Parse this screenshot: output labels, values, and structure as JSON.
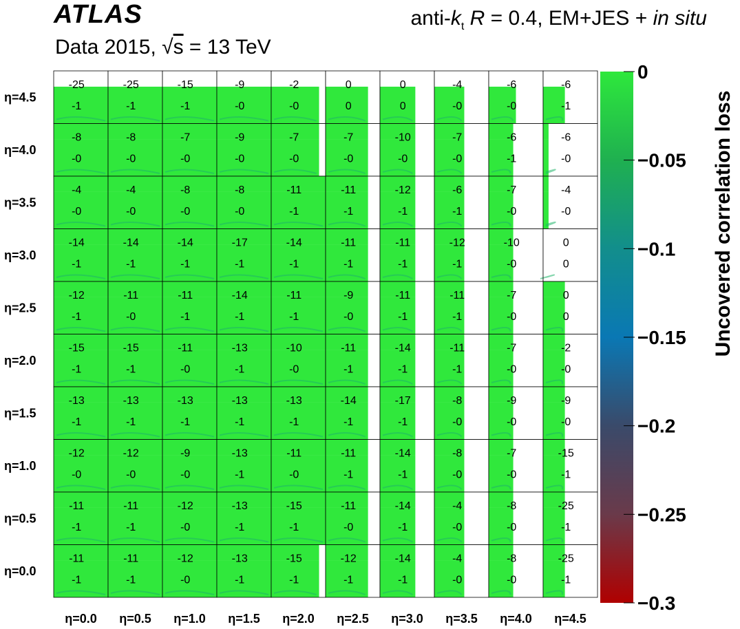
{
  "header": {
    "experiment": "ATLAS",
    "jet_prefix": "anti-",
    "jet_k": "k",
    "jet_k_sub": "t",
    "jet_R": "R",
    "jet_suffix": " = 0.4, EM+JES + ",
    "jet_insitu": "in situ",
    "data_prefix": "Data 2015, ",
    "sqrt_symbol": "√",
    "sqrt_arg": "s",
    "energy": " = 13 TeV"
  },
  "chart_data": {
    "type": "heatmap",
    "x_labels": [
      "η=0.0",
      "η=0.5",
      "η=1.0",
      "η=1.5",
      "η=2.0",
      "η=2.5",
      "η=3.0",
      "η=3.5",
      "η=4.0",
      "η=4.5"
    ],
    "y_labels": [
      "η=0.0",
      "η=0.5",
      "η=1.0",
      "η=1.5",
      "η=2.0",
      "η=2.5",
      "η=3.0",
      "η=3.5",
      "η=4.0",
      "η=4.5"
    ],
    "top_values": [
      [
        "-25",
        "-25",
        "-15",
        "-9",
        "-2",
        "0",
        "0",
        "-4",
        "-6",
        "-6"
      ],
      [
        "-8",
        "-8",
        "-7",
        "-9",
        "-7",
        "-7",
        "-10",
        "-7",
        "-6",
        "-6"
      ],
      [
        "-4",
        "-4",
        "-8",
        "-8",
        "-11",
        "-11",
        "-12",
        "-6",
        "-7",
        "-4"
      ],
      [
        "-14",
        "-14",
        "-14",
        "-17",
        "-14",
        "-11",
        "-11",
        "-12",
        "-10",
        "0"
      ],
      [
        "-12",
        "-11",
        "-11",
        "-14",
        "-11",
        "-9",
        "-11",
        "-11",
        "-7",
        "0"
      ],
      [
        "-15",
        "-15",
        "-11",
        "-13",
        "-10",
        "-11",
        "-14",
        "-11",
        "-7",
        "-2"
      ],
      [
        "-13",
        "-13",
        "-13",
        "-13",
        "-13",
        "-14",
        "-17",
        "-8",
        "-9",
        "-9"
      ],
      [
        "-12",
        "-12",
        "-9",
        "-13",
        "-11",
        "-11",
        "-14",
        "-8",
        "-7",
        "-15"
      ],
      [
        "-11",
        "-11",
        "-12",
        "-13",
        "-15",
        "-11",
        "-14",
        "-4",
        "-8",
        "-25"
      ],
      [
        "-11",
        "-11",
        "-12",
        "-13",
        "-15",
        "-12",
        "-14",
        "-4",
        "-8",
        "-25"
      ]
    ],
    "bottom_values": [
      [
        "-1",
        "-1",
        "-1",
        "-0",
        "-0",
        "0",
        "0",
        "-0",
        "-0",
        "-1"
      ],
      [
        "-0",
        "-0",
        "-0",
        "-0",
        "-0",
        "-0",
        "-0",
        "-0",
        "-1",
        "-0"
      ],
      [
        "-0",
        "-0",
        "-0",
        "-0",
        "-1",
        "-1",
        "-1",
        "-1",
        "-0",
        "-0"
      ],
      [
        "-1",
        "-1",
        "-1",
        "-1",
        "-1",
        "-1",
        "-1",
        "-1",
        "-0",
        "0"
      ],
      [
        "-1",
        "-0",
        "-1",
        "-1",
        "-1",
        "-0",
        "-1",
        "-1",
        "-0",
        "0"
      ],
      [
        "-1",
        "-1",
        "-0",
        "-1",
        "-0",
        "-1",
        "-1",
        "-1",
        "-0",
        "-0"
      ],
      [
        "-1",
        "-1",
        "-1",
        "-1",
        "-1",
        "-1",
        "-1",
        "-0",
        "-0",
        "-0"
      ],
      [
        "-0",
        "-0",
        "-0",
        "-1",
        "-0",
        "-1",
        "-1",
        "-0",
        "-0",
        "-1"
      ],
      [
        "-1",
        "-1",
        "-0",
        "-1",
        "-1",
        "-0",
        "-1",
        "-0",
        "-0",
        "-1"
      ],
      [
        "-1",
        "-1",
        "-0",
        "-1",
        "-1",
        "-1",
        "-1",
        "-0",
        "-0",
        "-1"
      ]
    ],
    "fill_fraction_top": [
      [
        1,
        1,
        1,
        1,
        0.88,
        0.78,
        0.65,
        0.55,
        0.5,
        0.4
      ],
      [
        1,
        1,
        1,
        1,
        0.88,
        0.78,
        0.65,
        0.55,
        0.45,
        0.1
      ],
      [
        1,
        1,
        1,
        1,
        1,
        0.78,
        0.65,
        0.55,
        0.45,
        0.1
      ],
      [
        1,
        1,
        1,
        1,
        1,
        0.78,
        0.65,
        0.55,
        0.45,
        0
      ],
      [
        1,
        1,
        1,
        1,
        1,
        0.78,
        0.65,
        0.55,
        0.45,
        0.4
      ],
      [
        1,
        1,
        1,
        1,
        1,
        0.78,
        0.65,
        0.55,
        0.45,
        0.4
      ],
      [
        1,
        1,
        1,
        1,
        1,
        0.78,
        0.65,
        0.55,
        0.45,
        0.4
      ],
      [
        1,
        1,
        1,
        1,
        1,
        0.78,
        0.65,
        0.55,
        0.45,
        0.4
      ],
      [
        1,
        1,
        1,
        1,
        1,
        0.78,
        0.65,
        0.55,
        0.45,
        0.4
      ],
      [
        1,
        1,
        1,
        1,
        0.88,
        0.78,
        0.65,
        0.55,
        0.45,
        0.4
      ]
    ],
    "z_title": "Uncovered correlation loss",
    "z_ticks": [
      "0",
      "−0.05",
      "−0.1",
      "−0.15",
      "−0.2",
      "−0.25",
      "−0.3"
    ],
    "z_range": [
      -0.3,
      0
    ],
    "colormap": [
      "#b00000",
      "#6a3a4a",
      "#3a4a6a",
      "#0a78b4",
      "#128e8c",
      "#1fb050",
      "#2ee83c"
    ],
    "fill_color": "#30e83c"
  }
}
